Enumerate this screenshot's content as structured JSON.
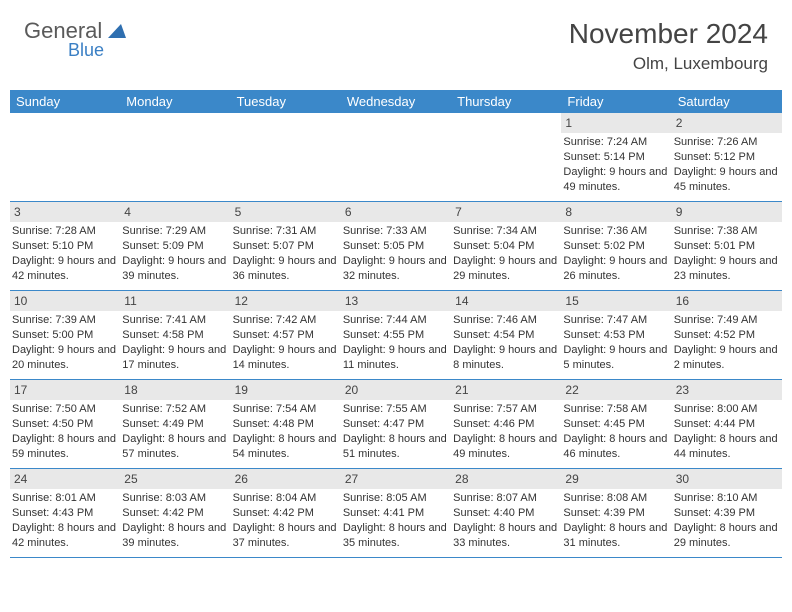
{
  "logo": {
    "text1": "General",
    "text2": "Blue",
    "color1": "#5a5a5a",
    "color2": "#3a7fc4"
  },
  "title": "November 2024",
  "location": "Olm, Luxembourg",
  "colors": {
    "header_bg": "#3b88c9",
    "daynum_bg": "#e8e8e8",
    "divider": "#3b88c9",
    "text": "#333333"
  },
  "day_headers": [
    "Sunday",
    "Monday",
    "Tuesday",
    "Wednesday",
    "Thursday",
    "Friday",
    "Saturday"
  ],
  "weeks": [
    [
      {
        "n": "",
        "lines": []
      },
      {
        "n": "",
        "lines": []
      },
      {
        "n": "",
        "lines": []
      },
      {
        "n": "",
        "lines": []
      },
      {
        "n": "",
        "lines": []
      },
      {
        "n": "1",
        "lines": [
          "Sunrise: 7:24 AM",
          "Sunset: 5:14 PM",
          "Daylight: 9 hours and 49 minutes."
        ]
      },
      {
        "n": "2",
        "lines": [
          "Sunrise: 7:26 AM",
          "Sunset: 5:12 PM",
          "Daylight: 9 hours and 45 minutes."
        ]
      }
    ],
    [
      {
        "n": "3",
        "lines": [
          "Sunrise: 7:28 AM",
          "Sunset: 5:10 PM",
          "Daylight: 9 hours and 42 minutes."
        ]
      },
      {
        "n": "4",
        "lines": [
          "Sunrise: 7:29 AM",
          "Sunset: 5:09 PM",
          "Daylight: 9 hours and 39 minutes."
        ]
      },
      {
        "n": "5",
        "lines": [
          "Sunrise: 7:31 AM",
          "Sunset: 5:07 PM",
          "Daylight: 9 hours and 36 minutes."
        ]
      },
      {
        "n": "6",
        "lines": [
          "Sunrise: 7:33 AM",
          "Sunset: 5:05 PM",
          "Daylight: 9 hours and 32 minutes."
        ]
      },
      {
        "n": "7",
        "lines": [
          "Sunrise: 7:34 AM",
          "Sunset: 5:04 PM",
          "Daylight: 9 hours and 29 minutes."
        ]
      },
      {
        "n": "8",
        "lines": [
          "Sunrise: 7:36 AM",
          "Sunset: 5:02 PM",
          "Daylight: 9 hours and 26 minutes."
        ]
      },
      {
        "n": "9",
        "lines": [
          "Sunrise: 7:38 AM",
          "Sunset: 5:01 PM",
          "Daylight: 9 hours and 23 minutes."
        ]
      }
    ],
    [
      {
        "n": "10",
        "lines": [
          "Sunrise: 7:39 AM",
          "Sunset: 5:00 PM",
          "Daylight: 9 hours and 20 minutes."
        ]
      },
      {
        "n": "11",
        "lines": [
          "Sunrise: 7:41 AM",
          "Sunset: 4:58 PM",
          "Daylight: 9 hours and 17 minutes."
        ]
      },
      {
        "n": "12",
        "lines": [
          "Sunrise: 7:42 AM",
          "Sunset: 4:57 PM",
          "Daylight: 9 hours and 14 minutes."
        ]
      },
      {
        "n": "13",
        "lines": [
          "Sunrise: 7:44 AM",
          "Sunset: 4:55 PM",
          "Daylight: 9 hours and 11 minutes."
        ]
      },
      {
        "n": "14",
        "lines": [
          "Sunrise: 7:46 AM",
          "Sunset: 4:54 PM",
          "Daylight: 9 hours and 8 minutes."
        ]
      },
      {
        "n": "15",
        "lines": [
          "Sunrise: 7:47 AM",
          "Sunset: 4:53 PM",
          "Daylight: 9 hours and 5 minutes."
        ]
      },
      {
        "n": "16",
        "lines": [
          "Sunrise: 7:49 AM",
          "Sunset: 4:52 PM",
          "Daylight: 9 hours and 2 minutes."
        ]
      }
    ],
    [
      {
        "n": "17",
        "lines": [
          "Sunrise: 7:50 AM",
          "Sunset: 4:50 PM",
          "Daylight: 8 hours and 59 minutes."
        ]
      },
      {
        "n": "18",
        "lines": [
          "Sunrise: 7:52 AM",
          "Sunset: 4:49 PM",
          "Daylight: 8 hours and 57 minutes."
        ]
      },
      {
        "n": "19",
        "lines": [
          "Sunrise: 7:54 AM",
          "Sunset: 4:48 PM",
          "Daylight: 8 hours and 54 minutes."
        ]
      },
      {
        "n": "20",
        "lines": [
          "Sunrise: 7:55 AM",
          "Sunset: 4:47 PM",
          "Daylight: 8 hours and 51 minutes."
        ]
      },
      {
        "n": "21",
        "lines": [
          "Sunrise: 7:57 AM",
          "Sunset: 4:46 PM",
          "Daylight: 8 hours and 49 minutes."
        ]
      },
      {
        "n": "22",
        "lines": [
          "Sunrise: 7:58 AM",
          "Sunset: 4:45 PM",
          "Daylight: 8 hours and 46 minutes."
        ]
      },
      {
        "n": "23",
        "lines": [
          "Sunrise: 8:00 AM",
          "Sunset: 4:44 PM",
          "Daylight: 8 hours and 44 minutes."
        ]
      }
    ],
    [
      {
        "n": "24",
        "lines": [
          "Sunrise: 8:01 AM",
          "Sunset: 4:43 PM",
          "Daylight: 8 hours and 42 minutes."
        ]
      },
      {
        "n": "25",
        "lines": [
          "Sunrise: 8:03 AM",
          "Sunset: 4:42 PM",
          "Daylight: 8 hours and 39 minutes."
        ]
      },
      {
        "n": "26",
        "lines": [
          "Sunrise: 8:04 AM",
          "Sunset: 4:42 PM",
          "Daylight: 8 hours and 37 minutes."
        ]
      },
      {
        "n": "27",
        "lines": [
          "Sunrise: 8:05 AM",
          "Sunset: 4:41 PM",
          "Daylight: 8 hours and 35 minutes."
        ]
      },
      {
        "n": "28",
        "lines": [
          "Sunrise: 8:07 AM",
          "Sunset: 4:40 PM",
          "Daylight: 8 hours and 33 minutes."
        ]
      },
      {
        "n": "29",
        "lines": [
          "Sunrise: 8:08 AM",
          "Sunset: 4:39 PM",
          "Daylight: 8 hours and 31 minutes."
        ]
      },
      {
        "n": "30",
        "lines": [
          "Sunrise: 8:10 AM",
          "Sunset: 4:39 PM",
          "Daylight: 8 hours and 29 minutes."
        ]
      }
    ]
  ]
}
